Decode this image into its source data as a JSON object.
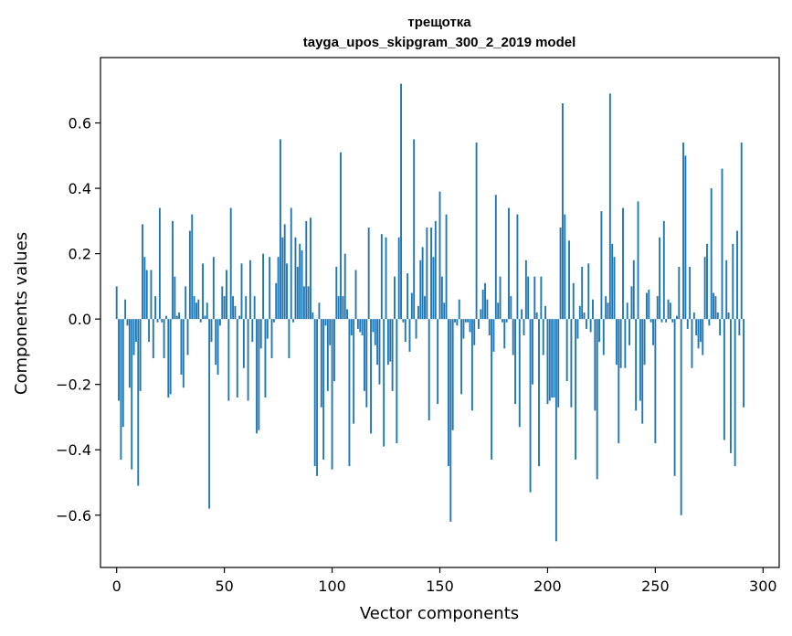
{
  "chart_data": {
    "type": "bar",
    "title": "трещотка",
    "subtitle": "tayga_upos_skipgram_300_2_2019 model",
    "xlabel": "Vector components",
    "ylabel": "Components values",
    "xlim": [
      -7.5,
      307.5
    ],
    "ylim": [
      -0.76,
      0.8
    ],
    "grid": false,
    "legend": "none",
    "bar_color": "#1f77b4",
    "x_ticks": [
      0,
      50,
      100,
      150,
      200,
      250,
      300
    ],
    "x_tick_labels": [
      "0",
      "50",
      "100",
      "150",
      "200",
      "250",
      "300"
    ],
    "y_ticks": [
      -0.6,
      -0.4,
      -0.2,
      0.0,
      0.2,
      0.4,
      0.6
    ],
    "y_tick_labels": [
      "−0.6",
      "−0.4",
      "−0.2",
      "0.0",
      "0.2",
      "0.4",
      "0.6"
    ],
    "values": [
      0.1,
      -0.25,
      -0.43,
      -0.33,
      0.06,
      -0.02,
      -0.21,
      -0.46,
      -0.11,
      -0.07,
      -0.51,
      -0.22,
      0.29,
      0.19,
      0.15,
      -0.07,
      0.15,
      -0.12,
      0.07,
      -0.01,
      0.34,
      -0.01,
      -0.12,
      0.01,
      -0.24,
      -0.23,
      0.3,
      0.13,
      0.01,
      0.02,
      -0.17,
      -0.21,
      0.1,
      -0.11,
      0.27,
      0.32,
      0.07,
      0.05,
      0.06,
      -0.01,
      0.17,
      0.01,
      0.05,
      -0.58,
      -0.07,
      0.19,
      -0.14,
      -0.17,
      -0.02,
      0.1,
      0.07,
      0.15,
      -0.25,
      0.34,
      0.07,
      0.04,
      -0.24,
      0.01,
      0.17,
      -0.15,
      0.07,
      -0.25,
      0.18,
      -0.07,
      0.07,
      -0.35,
      -0.34,
      -0.09,
      0.2,
      -0.24,
      -0.06,
      0.19,
      -0.12,
      -0.01,
      0.11,
      0.19,
      0.55,
      0.25,
      0.29,
      0.17,
      -0.12,
      0.34,
      -0.01,
      0.25,
      0.16,
      0.23,
      0.21,
      0.1,
      0.3,
      0.1,
      0.31,
      0.02,
      -0.45,
      -0.48,
      0.05,
      -0.27,
      -0.43,
      -0.02,
      -0.22,
      -0.08,
      -0.46,
      -0.19,
      0.16,
      0.07,
      0.51,
      0.07,
      0.2,
      0.03,
      -0.45,
      -0.05,
      -0.32,
      0.15,
      -0.03,
      -0.04,
      -0.05,
      -0.22,
      -0.27,
      0.28,
      -0.35,
      -0.04,
      -0.08,
      -0.14,
      -0.2,
      0.26,
      -0.39,
      0.25,
      -0.14,
      -0.13,
      -0.22,
      0.13,
      -0.38,
      0.25,
      0.72,
      -0.01,
      -0.07,
      0.14,
      -0.1,
      0.08,
      0.55,
      -0.06,
      0.04,
      0.18,
      0.22,
      0.07,
      0.28,
      -0.31,
      0.28,
      0.19,
      0.3,
      -0.26,
      0.39,
      0.13,
      0.05,
      0.32,
      -0.45,
      -0.62,
      -0.34,
      -0.01,
      -0.02,
      0.06,
      -0.23,
      -0.06,
      -0.01,
      -0.01,
      -0.04,
      -0.28,
      -0.08,
      0.54,
      -0.03,
      0.03,
      0.09,
      0.11,
      0.06,
      -0.05,
      -0.43,
      -0.1,
      0.38,
      0.05,
      0.13,
      -0.01,
      -0.09,
      -0.01,
      0.34,
      0.07,
      -0.11,
      -0.26,
      0.32,
      -0.33,
      0.03,
      -0.05,
      0.18,
      0.13,
      -0.53,
      -0.2,
      0.13,
      0.02,
      -0.45,
      0.13,
      -0.11,
      0.04,
      -0.26,
      -0.25,
      -0.24,
      -0.24,
      -0.68,
      -0.27,
      0.28,
      0.66,
      0.32,
      -0.19,
      0.24,
      -0.27,
      0.11,
      -0.43,
      -0.06,
      0.04,
      0.16,
      0.02,
      -0.03,
      0.17,
      -0.04,
      0.06,
      -0.28,
      -0.49,
      -0.07,
      0.33,
      -0.11,
      0.07,
      0.05,
      0.69,
      0.23,
      0.19,
      -0.14,
      -0.38,
      -0.15,
      0.34,
      -0.15,
      0.05,
      -0.08,
      0.1,
      0.18,
      -0.28,
      0.36,
      -0.25,
      -0.32,
      -0.14,
      0.08,
      0.09,
      -0.01,
      -0.08,
      -0.38,
      0.07,
      0.25,
      -0.01,
      0.3,
      -0.01,
      0.06,
      0.05,
      -0.01,
      -0.48,
      0.01,
      0.16,
      -0.6,
      0.54,
      0.5,
      -0.03,
      0.16,
      -0.15,
      0.02,
      -0.05,
      -0.09,
      -0.07,
      -0.11,
      0.19,
      0.23,
      -0.02,
      0.4,
      0.08,
      0.07,
      0.02,
      -0.05,
      0.46,
      -0.37,
      0.18,
      0.02,
      -0.41,
      0.23,
      -0.45,
      0.27,
      -0.05,
      0.54,
      -0.27
    ]
  }
}
